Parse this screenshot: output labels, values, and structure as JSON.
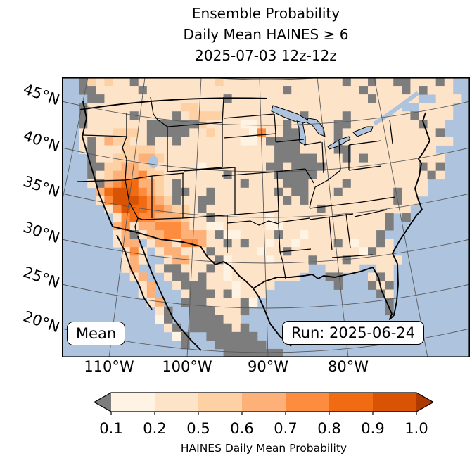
{
  "header": {
    "line1": "Ensemble Probability",
    "line2": "Daily Mean HAINES ≥ 6",
    "line3": "2025-07-03 12z-12z"
  },
  "map": {
    "mean_label": "Mean",
    "run_label": "Run: 2025-06-24",
    "lat_ticks": [
      "45°N",
      "40°N",
      "35°N",
      "30°N",
      "25°N",
      "20°N"
    ],
    "lon_ticks": [
      "110°W",
      "100°W",
      "90°W",
      "80°W"
    ],
    "ocean_color": "#aec3de",
    "under_color": "#7d7d7d",
    "graticule_color": "#5a5a5a",
    "border_color": "#000000"
  },
  "colorbar": {
    "label": "HAINES Daily Mean Probability",
    "ticks": [
      "0.1",
      "0.2",
      "0.5",
      "0.6",
      "0.7",
      "0.8",
      "0.9",
      "1.0"
    ],
    "segment_colors": [
      "#fff3e4",
      "#fde3c8",
      "#fdd1a4",
      "#fdb077",
      "#fd8c3f",
      "#f16b13",
      "#d85303"
    ],
    "under_arrow_color": "#7d7d7d",
    "over_arrow_color": "#ad3a02"
  },
  "chart_data": {
    "type": "heatmap",
    "title": "Ensemble Probability",
    "subtitle": "Daily Mean HAINES ≥ 6",
    "valid_period": "2025-07-03 12z-12z",
    "model_run": "2025-06-24",
    "statistic": "Mean",
    "variable": "HAINES Daily Mean Probability",
    "colormap": "Oranges",
    "probability_levels": [
      0.1,
      0.2,
      0.5,
      0.6,
      0.7,
      0.8,
      0.9,
      1.0
    ],
    "legend_position": "bottom",
    "lon_tick_values": [
      -110,
      -100,
      -90,
      -80
    ],
    "lat_tick_values": [
      45,
      40,
      35,
      30,
      25,
      20
    ],
    "grid": {
      "cols": 48,
      "rows": 33,
      "cell_legend": {
        "~": "water",
        "g": "below 0.1 (gray)",
        "1": "0.1-0.2",
        "2": "0.2-0.5",
        "3": "0.5-0.6",
        "4": "0.6-0.7",
        "5": "0.7-0.8",
        "6": "0.8-0.9",
        "7": "0.9-1.0"
      },
      "rows_data": [
        "~~g32322g222222222322222222222222g22g22gg222g2~~",
        "~~gg22222g2222222222222222g22222222g2222g2g222~~",
        "~~~gg22222222222222g2222222222222222g22222~~222~",
        "~~g2222222222233222222222222222222222222~~2222~~",
        "~~g22222g2222g23333222222222g2222g2222222g2222~~",
        "~~g2222222gggggg3222211222g22222gg22222222g22~~~",
        "~~22223332ggggg22322221522gg2222g22222222222g~~~",
        "~~2g243322g22g2222222112gggg2222g2222222222222~~",
        "~~2g222333322222222222222ggg2222gg2222222222~~~~",
        "~~~g223334432222222222222ggggg222g2g222222222~~~",
        "~~~gg3344332222212222222gg2gggg22222222222g2g~~~",
        "~~~g234445332222222g22222ggggg2222222222222g2~~~",
        "~~~2g45664432g2222222g2222ggg2222g222222222~~~~~",
        "~~~~467765432gg22g2222222g2gg222g222222g222~~~~~",
        "~~~~257776543g22gg22222222g2g2222222222g22~~~~~~",
        "~~~~~25766554332g2222222222222g2222222222~~~~~~~",
        "~~~~~~25655444322g22222212222222222222g~g~~~~~~~",
        "~~~~~~45244555422112222211222222222222g~~~~~~~~~",
        "~~~~~~24g244554442g112222g22122222222g~~~~~~~~~~",
        "~~~~~~244~244255422g2g2212212222g2122g2~~~~~~~~~",
        "~~~~~~~252~244222g22222122g222222221g22~~~~~~~~~",
        "~~~~~~~242~~244222g1222212222g222g222222~~~~~~~~",
        "~~~~~~~24~~2gg222g21222222222~~2222~~22~~~~~~~~~",
        "~~~~~~~~24~~2gg2g22122222222~~~gg~~~2g2~~~~~~~~~",
        "~~~~~~~~~24~~2ggg22212222~~~~~~~g~~~g2g~~~~~~~~~",
        "~~~~~~~~~24~~~2ggg2g1222~~~~~~~~~~~~~g2~~~~~~~~~",
        "~~~~~~~~~~24~~ggg2222g1~~~~~~~~~~~~~~~g~~~~~~~~~",
        "~~~~~~~~~~~2g~~ggg222g~~~~~~~~~~~~~~~~g~~~~~~~~~",
        "~~~~~~~~~~~1g~~gggg22~~~~~~~~~~~~~~~~~~~~~~~~~~~",
        "~~~~~~~~~~~~2g~ggggg2g~~~~~~~~~~~~~~~~~~~~~~~~~~",
        "~~~~~~~~~~~~~1g~~gggggg~~~~~~~~~~~~~~~~~~~~~~~~~",
        "~~~~~~~~~~~~~~g~~~gggggg~~~~~~~~~~~~~~~~~~~~~~~~",
        "~~~~~~~~~~~~~~~~~~~ggggggg~~~~~~~~~~~~~~~~~~~~~~"
      ]
    }
  }
}
